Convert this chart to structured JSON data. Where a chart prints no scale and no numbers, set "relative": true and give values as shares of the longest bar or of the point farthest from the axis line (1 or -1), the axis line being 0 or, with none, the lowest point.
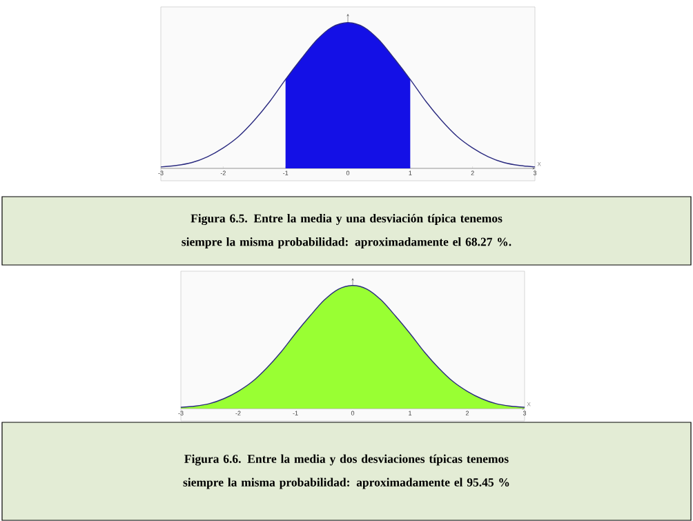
{
  "chart_data": [
    {
      "type": "area",
      "relative": true,
      "xlabel": "X",
      "xlim": [
        -3,
        3
      ],
      "xticks": [
        -3,
        -2,
        -1,
        0,
        1,
        2,
        3
      ],
      "title": "Figura  6.5.    Entre la media y una desviación típica tenemos siempre la misma probabilidad: aproximadamente el 68.27 %.",
      "series": [
        {
          "color": "#1410e6",
          "x": [
            -1,
            -0.75,
            -0.5,
            -0.25,
            0,
            0.25,
            0.5,
            0.75,
            1
          ],
          "values": [
            0.61,
            0.75,
            0.88,
            0.97,
            1,
            0.97,
            0.88,
            0.75,
            0.61
          ]
        },
        {
          "type": "line",
          "color": "#2b2b80",
          "x": [
            -3,
            -2.75,
            -2.5,
            -2.25,
            -2,
            -1.75,
            -1.5,
            -1.25,
            -1,
            -0.75,
            -0.5,
            -0.25,
            0,
            0.25,
            0.5,
            0.75,
            1,
            1.25,
            1.5,
            1.75,
            2,
            2.25,
            2.5,
            2.75,
            3
          ],
          "values": [
            0.01,
            0.02,
            0.04,
            0.08,
            0.14,
            0.22,
            0.33,
            0.46,
            0.61,
            0.75,
            0.88,
            0.97,
            1,
            0.97,
            0.88,
            0.75,
            0.61,
            0.46,
            0.33,
            0.22,
            0.14,
            0.08,
            0.04,
            0.02,
            0.01
          ]
        }
      ]
    },
    {
      "type": "area",
      "relative": true,
      "xlabel": "X",
      "xlim": [
        -3,
        3
      ],
      "xticks": [
        -3,
        -2,
        -1,
        0,
        1,
        2,
        3
      ],
      "title": "Figura  6.6.    Entre la media y dos desviaciones típicas tenemos siempre la misma probabilidad: aproximadamente el 95.45 %",
      "series": [
        {
          "color": "#99ff33",
          "x": [
            -3,
            -2.75,
            -2.5,
            -2.25,
            -2,
            -1.75,
            -1.5,
            -1.25,
            -1,
            -0.75,
            -0.5,
            -0.25,
            0,
            0.25,
            0.5,
            0.75,
            1,
            1.25,
            1.5,
            1.75,
            2,
            2.25,
            2.5,
            2.75,
            3
          ],
          "values": [
            0.01,
            0.02,
            0.04,
            0.08,
            0.14,
            0.22,
            0.33,
            0.46,
            0.61,
            0.75,
            0.88,
            0.97,
            1,
            0.97,
            0.88,
            0.75,
            0.61,
            0.46,
            0.33,
            0.22,
            0.14,
            0.08,
            0.04,
            0.02,
            0.01
          ]
        },
        {
          "type": "line",
          "color": "#2b2b80",
          "x": [
            -3,
            -2.75,
            -2.5,
            -2.25,
            -2,
            -1.75,
            -1.5,
            -1.25,
            -1,
            -0.75,
            -0.5,
            -0.25,
            0,
            0.25,
            0.5,
            0.75,
            1,
            1.25,
            1.5,
            1.75,
            2,
            2.25,
            2.5,
            2.75,
            3
          ],
          "values": [
            0.01,
            0.02,
            0.04,
            0.08,
            0.14,
            0.22,
            0.33,
            0.46,
            0.61,
            0.75,
            0.88,
            0.97,
            1,
            0.97,
            0.88,
            0.75,
            0.61,
            0.46,
            0.33,
            0.22,
            0.14,
            0.08,
            0.04,
            0.02,
            0.01
          ]
        }
      ]
    }
  ]
}
